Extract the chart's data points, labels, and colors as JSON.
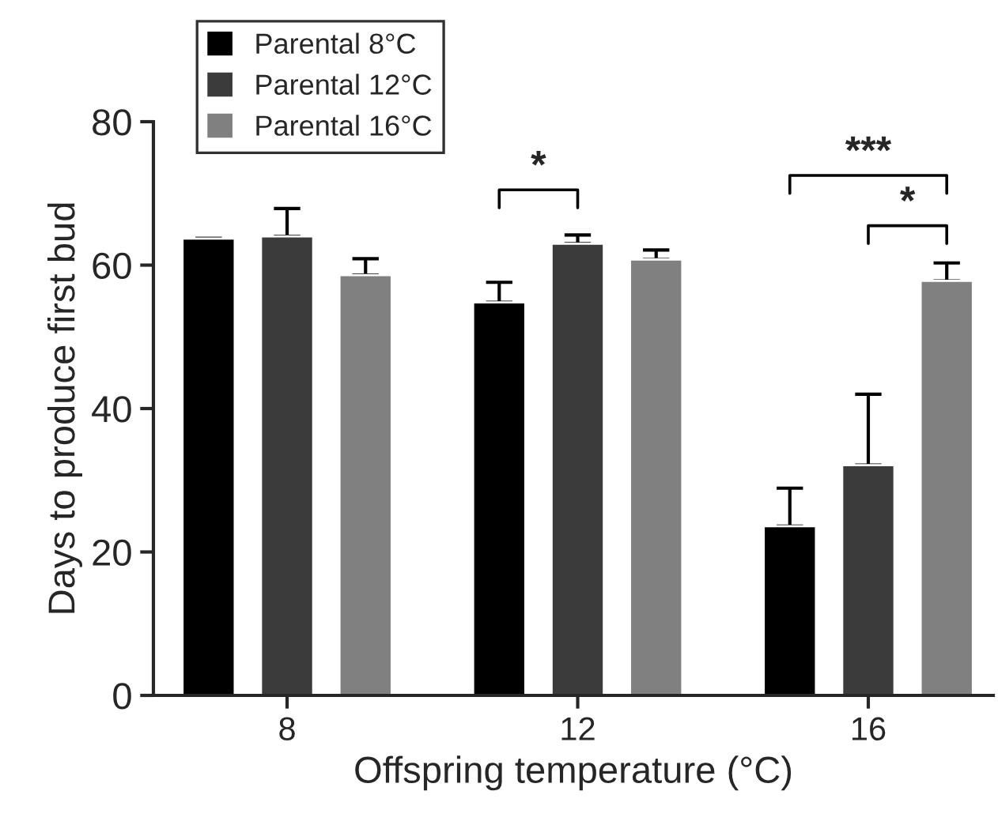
{
  "chart_data": {
    "type": "bar",
    "xlabel": "Offspring temperature (°C)",
    "ylabel": "Days to produce first bud",
    "categories": [
      "8",
      "12",
      "16"
    ],
    "series": [
      {
        "name": "Parental 8°C",
        "color": "#000000",
        "values": [
          63.7,
          54.8,
          23.6
        ],
        "errors": [
          [
            63.7,
            63.7
          ],
          [
            54.8,
            57.6
          ],
          [
            23.6,
            28.9
          ]
        ]
      },
      {
        "name": "Parental 12°C",
        "color": "#3b3b3b",
        "values": [
          64.0,
          63.0,
          32.1
        ],
        "errors": [
          [
            64.0,
            67.9
          ],
          [
            63.0,
            64.2
          ],
          [
            32.1,
            42.0
          ]
        ]
      },
      {
        "name": "Parental 16°C",
        "color": "#808080",
        "values": [
          58.6,
          60.8,
          57.8
        ],
        "errors": [
          [
            58.6,
            60.9
          ],
          [
            60.8,
            62.1
          ],
          [
            57.8,
            60.3
          ]
        ]
      }
    ],
    "ylim": [
      0,
      80
    ],
    "yticks": [
      0,
      20,
      40,
      60,
      80
    ],
    "grid": false,
    "legend": "top left",
    "annotations": [
      "*",
      "***",
      "*"
    ]
  }
}
